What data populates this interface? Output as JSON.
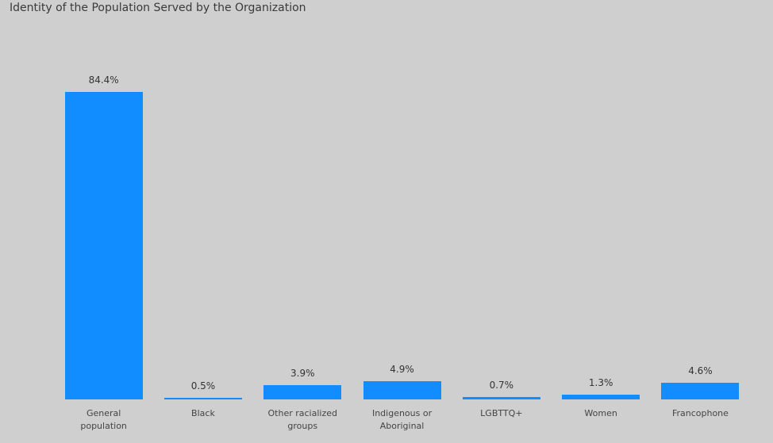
{
  "chart_data": {
    "type": "bar",
    "title": "Identity of the Population Served by the Organization",
    "categories": [
      "General population",
      "Black",
      "Other racialized groups",
      "Indigenous or Aboriginal",
      "LGBTTQ+",
      "Women",
      "Francophone"
    ],
    "values": [
      84.4,
      0.5,
      3.9,
      4.9,
      0.7,
      1.3,
      4.6
    ],
    "value_labels": [
      "84.4%",
      "0.5%",
      "3.9%",
      "4.9%",
      "0.7%",
      "1.3%",
      "4.6%"
    ],
    "color": "#118dff"
  }
}
